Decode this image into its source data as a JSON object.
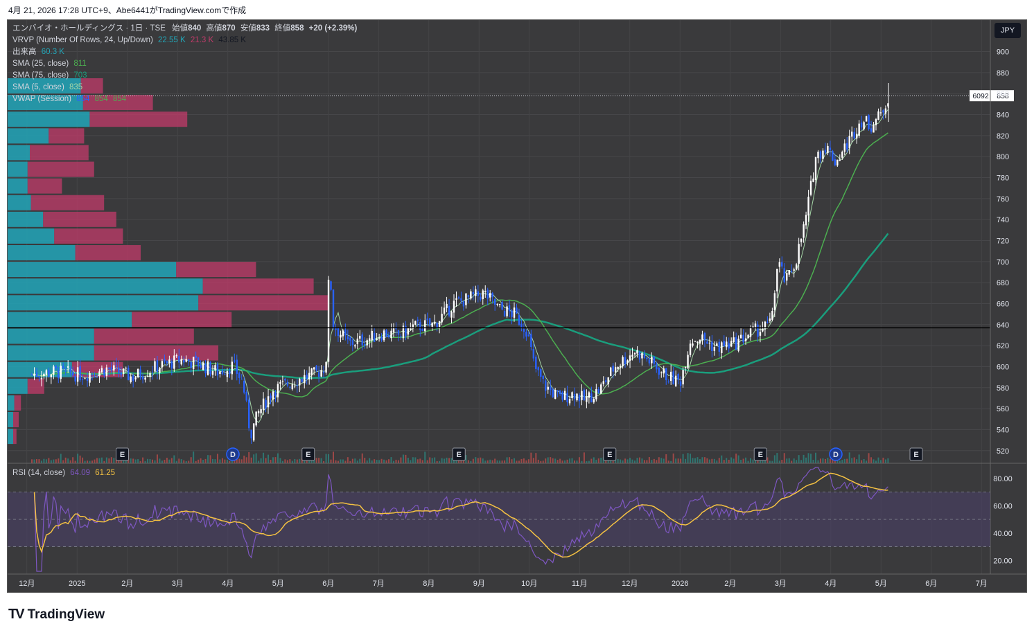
{
  "header": {
    "text": "4月 21, 2026 17:28 UTC+9、Abe6441がTradingView.comで作成"
  },
  "legend": {
    "symbol_line": "エンバイオ・ホールディングス · 1日 · TSE",
    "open_label": "始値",
    "open": "840",
    "high_label": "高値",
    "high": "870",
    "low_label": "安値",
    "low": "833",
    "close_label": "終値",
    "close": "858",
    "change": "+20 (+2.39%)",
    "vrvp_label": "VRVP (Number Of Rows, 24, Up/Down)",
    "vrvp_up": "22.55 K",
    "vrvp_down": "21.3 K",
    "vrvp_total": "43.85 K",
    "volume_label": "出来高",
    "volume": "60.3 K",
    "sma25_label": "SMA (25, close)",
    "sma25": "811",
    "sma75_label": "SMA (75, close)",
    "sma75": "703",
    "sma5_label": "SMA (5, close)",
    "sma5": "835",
    "vwap_label": "VWAP (Session)",
    "vwap1": "854",
    "vwap2": "854",
    "vwap3": "854",
    "rsi_label": "RSI (14, close)",
    "rsi": "64.09",
    "rsi_ma": "61.25"
  },
  "currency_button": "JPY",
  "price_tag": {
    "left": "6092",
    "right": "858"
  },
  "footer": {
    "brand": "TradingView"
  },
  "colors": {
    "background": "#3a3a3c",
    "up": "#ffffff",
    "down": "#2962ff",
    "sma25": "#4caf50",
    "sma75": "#1a9e7d",
    "sma5": "#a5d6a7",
    "vp_up": "#22a6b8",
    "vp_down": "#c23b6a",
    "rsi": "#7e57c2",
    "rsi_ma": "#f5c242",
    "hline": "#000000"
  },
  "chart_data": {
    "type": "candlestick",
    "title": "エンバイオ・ホールディングス · 1日 · TSE",
    "y_axis": {
      "ticks": [
        520,
        540,
        560,
        580,
        600,
        620,
        640,
        660,
        680,
        700,
        720,
        740,
        760,
        780,
        800,
        820,
        840,
        860,
        880,
        900
      ],
      "range": [
        508,
        930
      ]
    },
    "x_axis": {
      "labels": [
        "12月",
        "2025",
        "2月",
        "3月",
        "4月",
        "5月",
        "6月",
        "7月",
        "8月",
        "9月",
        "10月",
        "11月",
        "12月",
        "2026",
        "2月",
        "3月",
        "4月",
        "5月",
        "6月",
        "7月"
      ]
    },
    "horizontal_line": 637,
    "last_price": 858,
    "price_path": [
      {
        "d": 0,
        "p": 593
      },
      {
        "d": 0.5,
        "p": 595
      },
      {
        "d": 1,
        "p": 592
      },
      {
        "d": 1.5,
        "p": 598
      },
      {
        "d": 2,
        "p": 590
      },
      {
        "d": 2.5,
        "p": 600
      },
      {
        "d": 3,
        "p": 607
      },
      {
        "d": 3.3,
        "p": 603
      },
      {
        "d": 3.7,
        "p": 595
      },
      {
        "d": 4,
        "p": 601
      },
      {
        "d": 4.2,
        "p": 585
      },
      {
        "d": 4.35,
        "p": 535
      },
      {
        "d": 4.5,
        "p": 555
      },
      {
        "d": 4.8,
        "p": 578
      },
      {
        "d": 5,
        "p": 582
      },
      {
        "d": 5.3,
        "p": 588
      },
      {
        "d": 5.6,
        "p": 592
      },
      {
        "d": 5.85,
        "p": 600
      },
      {
        "d": 5.92,
        "p": 700
      },
      {
        "d": 6,
        "p": 640
      },
      {
        "d": 6.3,
        "p": 622
      },
      {
        "d": 6.6,
        "p": 625
      },
      {
        "d": 7,
        "p": 632
      },
      {
        "d": 7.3,
        "p": 630
      },
      {
        "d": 7.6,
        "p": 638
      },
      {
        "d": 8,
        "p": 640
      },
      {
        "d": 8.4,
        "p": 660
      },
      {
        "d": 8.7,
        "p": 665
      },
      {
        "d": 9,
        "p": 670
      },
      {
        "d": 9.3,
        "p": 655
      },
      {
        "d": 9.6,
        "p": 650
      },
      {
        "d": 9.85,
        "p": 635
      },
      {
        "d": 10,
        "p": 600
      },
      {
        "d": 10.2,
        "p": 582
      },
      {
        "d": 10.5,
        "p": 570
      },
      {
        "d": 10.8,
        "p": 575
      },
      {
        "d": 11,
        "p": 568
      },
      {
        "d": 11.3,
        "p": 578
      },
      {
        "d": 11.6,
        "p": 600
      },
      {
        "d": 12,
        "p": 615
      },
      {
        "d": 12.3,
        "p": 605
      },
      {
        "d": 12.6,
        "p": 592
      },
      {
        "d": 12.9,
        "p": 585
      },
      {
        "d": 13.1,
        "p": 625
      },
      {
        "d": 13.3,
        "p": 628
      },
      {
        "d": 13.6,
        "p": 618
      },
      {
        "d": 14,
        "p": 622
      },
      {
        "d": 14.3,
        "p": 632
      },
      {
        "d": 14.7,
        "p": 640
      },
      {
        "d": 14.85,
        "p": 700
      },
      {
        "d": 15,
        "p": 680
      },
      {
        "d": 15.2,
        "p": 700
      },
      {
        "d": 15.4,
        "p": 740
      },
      {
        "d": 15.6,
        "p": 800
      },
      {
        "d": 15.8,
        "p": 810
      },
      {
        "d": 16,
        "p": 795
      },
      {
        "d": 16.2,
        "p": 810
      },
      {
        "d": 16.5,
        "p": 835
      },
      {
        "d": 16.7,
        "p": 830
      },
      {
        "d": 16.9,
        "p": 840
      },
      {
        "d": 17.05,
        "p": 858
      }
    ],
    "volume_profile": [
      {
        "price": 850,
        "up": 0.66,
        "down": 0.2
      },
      {
        "price": 832,
        "up": 0.68,
        "down": 0.63
      },
      {
        "price": 816,
        "up": 0.74,
        "down": 0.88
      },
      {
        "price": 800,
        "up": 0.37,
        "down": 0.32
      },
      {
        "price": 784,
        "up": 0.2,
        "down": 0.53
      },
      {
        "price": 768,
        "up": 0.18,
        "down": 0.6
      },
      {
        "price": 752,
        "up": 0.18,
        "down": 0.31
      },
      {
        "price": 736,
        "up": 0.21,
        "down": 0.66
      },
      {
        "price": 720,
        "up": 0.32,
        "down": 0.66
      },
      {
        "price": 704,
        "up": 0.42,
        "down": 0.62
      },
      {
        "price": 688,
        "up": 0.61,
        "down": 0.59
      },
      {
        "price": 672,
        "up": 1.52,
        "down": 0.72
      },
      {
        "price": 656,
        "up": 1.76,
        "down": 1.0
      },
      {
        "price": 640,
        "up": 1.72,
        "down": 1.18
      },
      {
        "price": 624,
        "up": 1.12,
        "down": 0.9
      },
      {
        "price": 608,
        "up": 0.78,
        "down": 0.9
      },
      {
        "price": 592,
        "up": 0.78,
        "down": 1.12
      },
      {
        "price": 576,
        "up": 0.58,
        "down": 0.46
      },
      {
        "price": 560,
        "up": 0.18,
        "down": 0.15
      },
      {
        "price": 544,
        "up": 0.06,
        "down": 0.06
      },
      {
        "price": 528,
        "up": 0.05,
        "down": 0.05
      },
      {
        "price": 512,
        "up": 0.05,
        "down": 0.03
      }
    ],
    "events": [
      {
        "d": 1.8,
        "t": "E"
      },
      {
        "d": 4.0,
        "t": "D"
      },
      {
        "d": 5.5,
        "t": "E"
      },
      {
        "d": 8.5,
        "t": "E"
      },
      {
        "d": 11.5,
        "t": "E"
      },
      {
        "d": 14.5,
        "t": "E"
      },
      {
        "d": 16.0,
        "t": "D"
      },
      {
        "d": 17.6,
        "t": "E"
      }
    ],
    "rsi": {
      "ticks": [
        20,
        40,
        60,
        80
      ],
      "bands": [
        30,
        50,
        70
      ],
      "value": 64.09,
      "ma": 61.25
    }
  }
}
